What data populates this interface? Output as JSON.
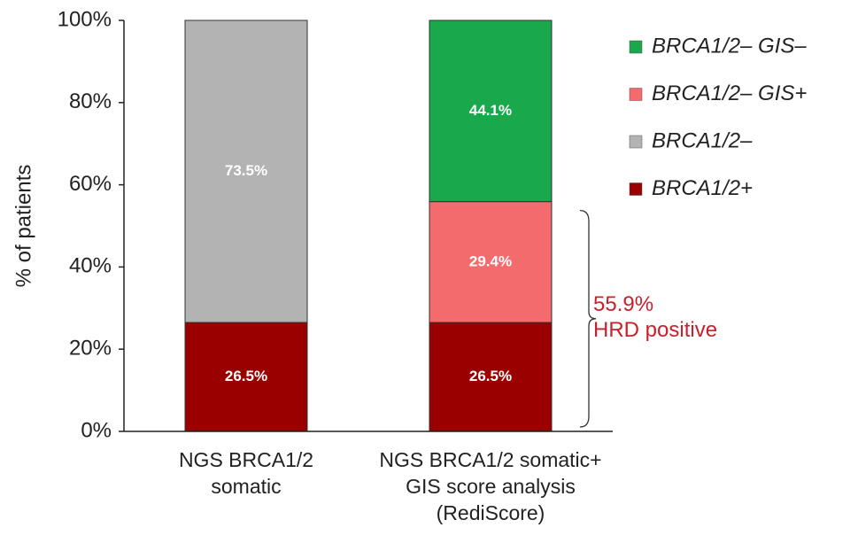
{
  "chart_data": {
    "type": "stacked_bar",
    "ylabel": "% of patients",
    "categories": [
      "NGS BRCA1/2\nsomatic",
      "NGS BRCA1/2 somatic+\nGIS score analysis\n(RediScore)"
    ],
    "series": [
      {
        "name": "BRCA1/2+",
        "color": "#9a0000",
        "values": [
          26.5,
          26.5
        ],
        "value_labels": [
          "26.5%",
          "26.5%"
        ]
      },
      {
        "name": "BRCA1/2–",
        "color": "#b3b3b3",
        "values": [
          73.5,
          null
        ],
        "value_labels": [
          "73.5%",
          null
        ]
      },
      {
        "name": "BRCA1/2– GIS+",
        "color": "#f36b6d",
        "values": [
          null,
          29.4
        ],
        "value_labels": [
          null,
          "29.4%"
        ]
      },
      {
        "name": "BRCA1/2– GIS–",
        "color": "#1aa84c",
        "values": [
          null,
          44.1
        ],
        "value_labels": [
          null,
          "44.1%"
        ]
      }
    ],
    "ylim": [
      0,
      100
    ],
    "yticks": [
      {
        "value": 0,
        "label": "0%"
      },
      {
        "value": 20,
        "label": "20%"
      },
      {
        "value": 40,
        "label": "40%"
      },
      {
        "value": 60,
        "label": "60%"
      },
      {
        "value": 80,
        "label": "80%"
      },
      {
        "value": 100,
        "label": "100%"
      }
    ],
    "annotation": {
      "value": 55.9,
      "label": "55.9%",
      "text": "HRD positive"
    }
  }
}
